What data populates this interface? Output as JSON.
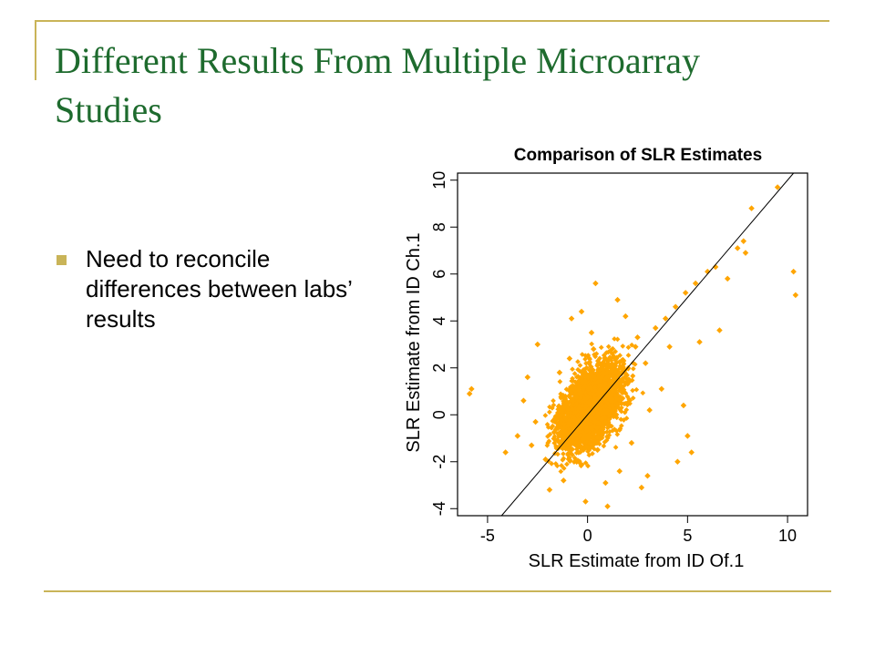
{
  "slide": {
    "title": "Different Results From Multiple Microarray Studies",
    "bullets": [
      {
        "text": "Need to reconcile differences between labs’ results"
      }
    ],
    "accent_color": "#c9b458",
    "title_color": "#1e6b2e"
  },
  "chart_data": {
    "type": "scatter",
    "title": "Comparison of SLR Estimates",
    "xlabel": "SLR Estimate from ID Of.1",
    "ylabel": "SLR Estimate from ID Ch.1",
    "xlim": [
      -6.5,
      11
    ],
    "ylim": [
      -4.3,
      10.3
    ],
    "xticks": [
      "-5",
      "0",
      "5",
      "10"
    ],
    "yticks": [
      "-4",
      "-2",
      "0",
      "2",
      "4",
      "6",
      "8",
      "10"
    ],
    "point_color": "#ffa500",
    "grid": false,
    "reference_line": {
      "type": "identity",
      "label": "y = x"
    },
    "x": [
      0.0,
      -0.5,
      0.6,
      1.2,
      -1.0,
      0.3,
      1.8,
      -1.6,
      2.5,
      -2.1,
      0.9,
      -0.3,
      1.5,
      2.9,
      3.4,
      3.9,
      4.4,
      4.9,
      5.4,
      6.0,
      6.4,
      7.0,
      7.5,
      7.9,
      8.2,
      9.5,
      10.3,
      10.4,
      7.8,
      -5.9,
      -5.8,
      3.0,
      4.5,
      5.2,
      -2.5,
      -3.0,
      -2.8,
      2.7,
      1.0,
      -0.8,
      0.4,
      4.8,
      5.0,
      -3.5,
      -4.1,
      0.2,
      1.6,
      -1.4,
      3.1,
      2.2,
      -0.1,
      -1.9,
      0.7,
      1.9,
      3.7,
      -2.6,
      4.1,
      5.6,
      6.6,
      -3.2,
      -0.9,
      0.5,
      2.0,
      2.4,
      -1.2
    ],
    "y": [
      0.1,
      -0.6,
      1.0,
      1.9,
      -1.1,
      2.8,
      2.3,
      -0.2,
      3.3,
      -1.9,
      -2.9,
      4.4,
      4.9,
      2.2,
      3.7,
      4.1,
      4.6,
      5.2,
      5.6,
      6.1,
      6.3,
      5.8,
      7.1,
      6.9,
      8.8,
      9.7,
      6.1,
      5.1,
      7.4,
      0.9,
      1.1,
      -2.6,
      -2.0,
      -1.6,
      3.0,
      1.6,
      -1.3,
      -3.1,
      -3.9,
      4.1,
      5.6,
      0.4,
      -0.9,
      -0.9,
      -1.6,
      3.5,
      -2.4,
      1.8,
      0.2,
      -1.2,
      -3.7,
      -3.2,
      2.0,
      4.2,
      1.1,
      -0.3,
      2.9,
      3.1,
      3.6,
      0.6,
      2.4,
      -1.5,
      0.5,
      2.9,
      -2.8
    ]
  }
}
